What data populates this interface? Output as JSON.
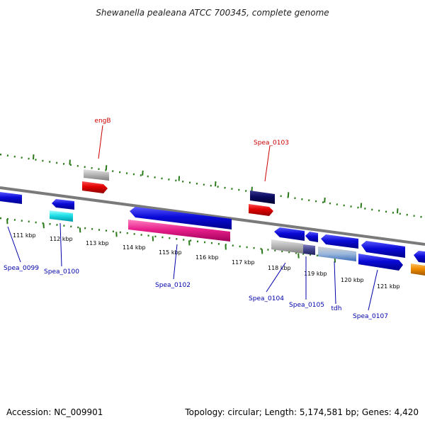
{
  "title": "Shewanella pealeana ATCC 700345, complete genome",
  "footer": {
    "accession": "Accession: NC_009901",
    "topology": "Topology: circular; Length: 5,174,581 bp; Genes: 4,420"
  },
  "scale_labels": [
    "111 kbp",
    "112 kbp",
    "113 kbp",
    "114 kbp",
    "115 kbp",
    "116 kbp",
    "117 kbp",
    "118 kbp",
    "119 kbp",
    "120 kbp",
    "121 kbp"
  ],
  "gene_labels": [
    {
      "name": "engB",
      "color": "#cc0000"
    },
    {
      "name": "Spea_0103",
      "color": "#cc0000"
    },
    {
      "name": "Spea_0099",
      "color": "#0000aa"
    },
    {
      "name": "Spea_0100",
      "color": "#0000aa"
    },
    {
      "name": "Spea_0102",
      "color": "#0000aa"
    },
    {
      "name": "Spea_0104",
      "color": "#0000aa"
    },
    {
      "name": "Spea_0105",
      "color": "#0000aa"
    },
    {
      "name": "tdh",
      "color": "#0000aa"
    },
    {
      "name": "Spea_0107",
      "color": "#0000aa"
    }
  ],
  "colors": {
    "backbone": "#7a7a7a",
    "tick": "#2a7a1a",
    "blue": "#0a0ad8",
    "red": "#e00000",
    "gray": "#b8b8b8",
    "navy": "#0a0a60",
    "cyan": "#20e0e8",
    "pink": "#e8208c",
    "orange": "#f08c00",
    "steel": "#5a8ac8",
    "slate": "#484890"
  }
}
